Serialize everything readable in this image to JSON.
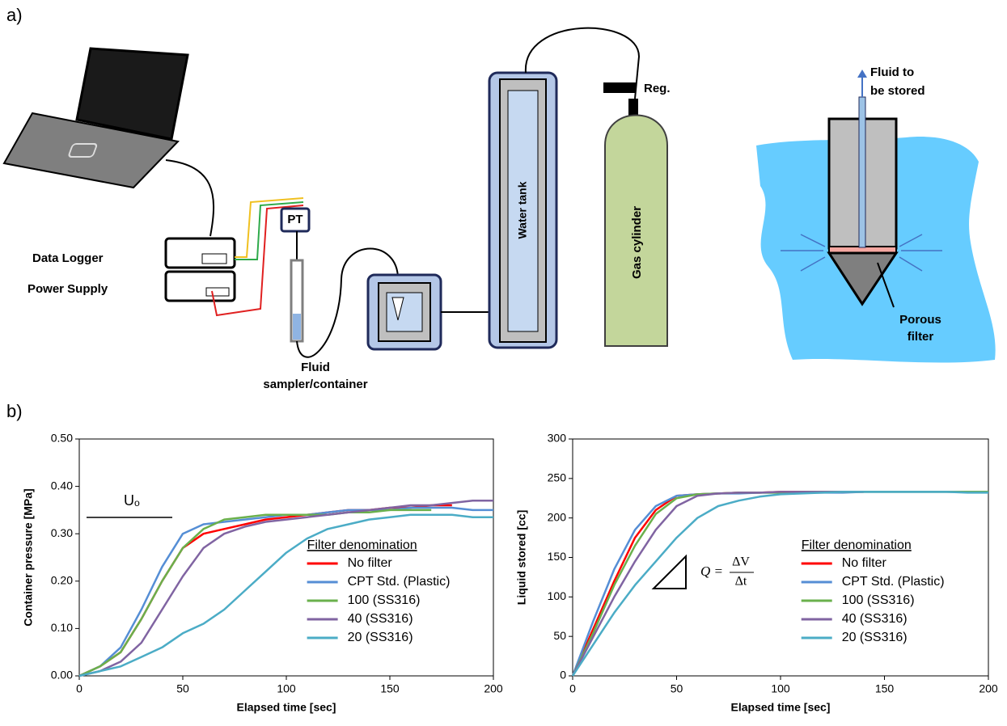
{
  "diagram": {
    "panel_a": "a)",
    "panel_b": "b)",
    "data_logger": "Data Logger",
    "power_supply": "Power Supply",
    "pt": "PT",
    "sampler": [
      "Fluid",
      "sampler/container"
    ],
    "water_tank": "Water tank",
    "reg": "Reg.",
    "gas_cylinder": "Gas cylinder",
    "fluid_stored": [
      "Fluid to",
      "be stored"
    ],
    "porous_filter": [
      "Porous",
      "filter"
    ]
  },
  "chart_data": [
    {
      "type": "line",
      "ylabel": "Container pressure [MPa]",
      "xlabel": "Elapsed time [sec]",
      "annotation": "Uₒ",
      "legend_title": "Filter denomination",
      "x": [
        0,
        10,
        20,
        30,
        40,
        50,
        60,
        70,
        80,
        90,
        100,
        110,
        120,
        130,
        140,
        150,
        160,
        170,
        180,
        190,
        200
      ],
      "xlim": [
        0,
        200
      ],
      "xticks": [
        0,
        50,
        100,
        150,
        200
      ],
      "ylim": [
        0,
        0.5
      ],
      "yticks": [
        {
          "value": 0,
          "label": "0.00"
        },
        {
          "value": 0.1,
          "label": "0.10"
        },
        {
          "value": 0.2,
          "label": "0.20"
        },
        {
          "value": 0.3,
          "label": "0.30"
        },
        {
          "value": 0.4,
          "label": "0.40"
        },
        {
          "value": 0.5,
          "label": "0.50"
        }
      ],
      "series": [
        {
          "name": "No filter",
          "color": "#ff0000",
          "values": [
            0,
            0.02,
            0.05,
            0.12,
            0.2,
            0.27,
            0.3,
            0.31,
            0.32,
            0.33,
            0.335,
            0.34,
            0.345,
            0.35,
            0.35,
            0.355,
            0.355,
            0.36,
            0.36,
            null,
            null
          ]
        },
        {
          "name": "CPT Std. (Plastic)",
          "color": "#558ed5",
          "values": [
            0,
            0.02,
            0.06,
            0.14,
            0.23,
            0.3,
            0.32,
            0.325,
            0.33,
            0.335,
            0.34,
            0.34,
            0.345,
            0.35,
            0.35,
            0.35,
            0.355,
            0.355,
            0.355,
            0.35,
            0.35
          ]
        },
        {
          "name": "100 (SS316)",
          "color": "#6ab04c",
          "values": [
            0,
            0.02,
            0.05,
            0.12,
            0.2,
            0.27,
            0.31,
            0.33,
            0.335,
            0.34,
            0.34,
            0.34,
            0.34,
            0.345,
            0.345,
            0.35,
            0.35,
            0.35,
            null,
            null,
            null
          ]
        },
        {
          "name": "40 (SS316)",
          "color": "#8064a2",
          "values": [
            0,
            0.01,
            0.03,
            0.07,
            0.14,
            0.21,
            0.27,
            0.3,
            0.315,
            0.325,
            0.33,
            0.335,
            0.34,
            0.345,
            0.35,
            0.355,
            0.36,
            0.36,
            0.365,
            0.37,
            0.37
          ]
        },
        {
          "name": "20 (SS316)",
          "color": "#4bacc6",
          "values": [
            0,
            0.01,
            0.02,
            0.04,
            0.06,
            0.09,
            0.11,
            0.14,
            0.18,
            0.22,
            0.26,
            0.29,
            0.31,
            0.32,
            0.33,
            0.335,
            0.34,
            0.34,
            0.34,
            0.335,
            0.335
          ]
        }
      ]
    },
    {
      "type": "line",
      "ylabel": "Liquid stored [cc]",
      "xlabel": "Elapsed time [sec]",
      "annotation": {
        "lhs": "Q =",
        "numerator": "ΔV",
        "denominator": "Δt"
      },
      "legend_title": "Filter denomination",
      "x": [
        0,
        10,
        20,
        30,
        40,
        50,
        60,
        70,
        80,
        90,
        100,
        110,
        120,
        130,
        140,
        150,
        160,
        170,
        180,
        190,
        200
      ],
      "xlim": [
        0,
        200
      ],
      "xticks": [
        0,
        50,
        100,
        150,
        200
      ],
      "ylim": [
        0,
        300
      ],
      "yticks": [
        0,
        50,
        100,
        150,
        200,
        250,
        300
      ],
      "series": [
        {
          "name": "No filter",
          "color": "#ff0000",
          "values": [
            0,
            60,
            120,
            175,
            210,
            228,
            230,
            231,
            232,
            232,
            233,
            233,
            233,
            233,
            233,
            null,
            null,
            null,
            null,
            null,
            null
          ]
        },
        {
          "name": "CPT Std. (Plastic)",
          "color": "#558ed5",
          "values": [
            0,
            70,
            135,
            185,
            215,
            228,
            230,
            231,
            231,
            232,
            232,
            232,
            232,
            232,
            233,
            233,
            233,
            233,
            233,
            233,
            233
          ]
        },
        {
          "name": "100 (SS316)",
          "color": "#6ab04c",
          "values": [
            0,
            55,
            115,
            165,
            205,
            225,
            230,
            231,
            232,
            232,
            232,
            233,
            233,
            233,
            233,
            233,
            233,
            233,
            233,
            233,
            233
          ]
        },
        {
          "name": "40 (SS316)",
          "color": "#8064a2",
          "values": [
            0,
            50,
            100,
            145,
            185,
            215,
            228,
            231,
            232,
            232,
            233,
            233,
            233,
            233,
            233,
            null,
            null,
            null,
            null,
            null,
            null
          ]
        },
        {
          "name": "20 (SS316)",
          "color": "#4bacc6",
          "values": [
            0,
            40,
            80,
            115,
            145,
            175,
            200,
            215,
            222,
            227,
            230,
            231,
            232,
            233,
            233,
            233,
            233,
            233,
            233,
            232,
            232
          ]
        }
      ]
    }
  ]
}
